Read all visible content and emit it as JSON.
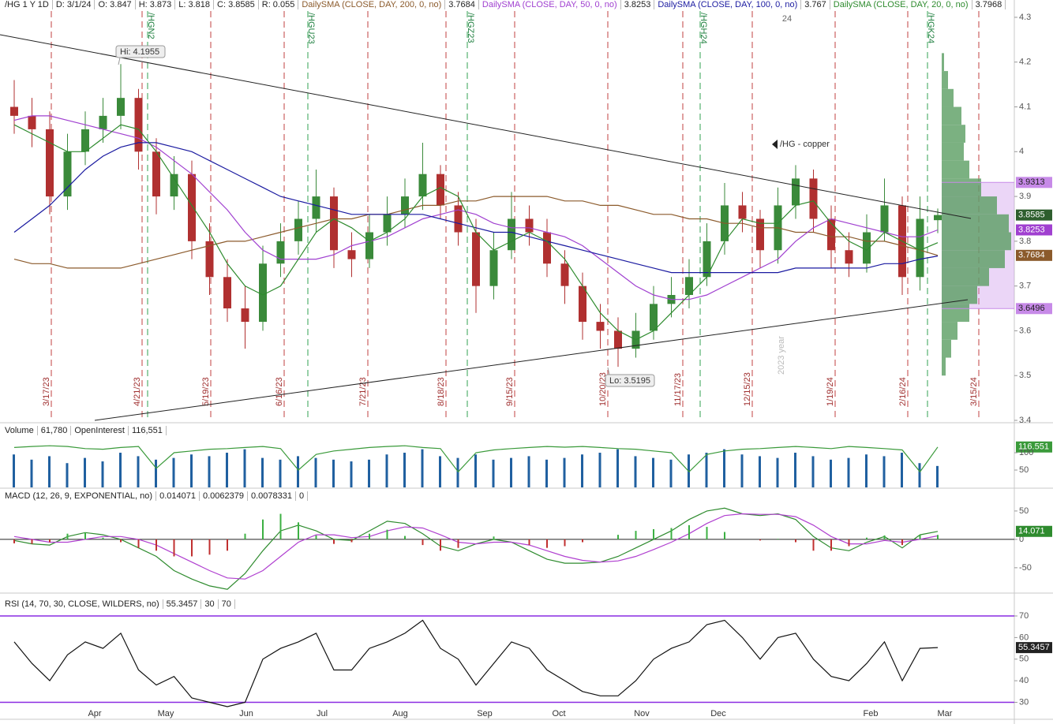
{
  "header": {
    "symbol": "/HG 1 Y 1D",
    "date": "D: 3/1/24",
    "open": "O: 3.847",
    "high": "H: 3.873",
    "low": "L: 3.818",
    "close": "C: 3.8585",
    "range": "R: 0.055"
  },
  "x_axis": {
    "labels": [
      "Apr",
      "May",
      "Jun",
      "Jul",
      "Aug",
      "Sep",
      "Oct",
      "Nov",
      "Dec",
      "Feb",
      "Mar"
    ],
    "year_mark": "24"
  },
  "expirations": [
    "3/17/23",
    "4/21/23",
    "5/19/23",
    "6/16/23",
    "7/21/23",
    "8/18/23",
    "9/15/23",
    "10/20/23",
    "11/17/23",
    "12/15/23",
    "1/19/24",
    "2/16/24",
    "3/15/24"
  ],
  "contracts": [
    "/HGN2",
    "/HGU23",
    "/HGZ23",
    "/HGH24",
    "/HGK24"
  ],
  "annotations": {
    "high": "Hi: 4.1955",
    "low": "Lo: 3.5195",
    "symbol_note": "/HG - copper",
    "year_note": "2023 year"
  },
  "chart_data": [
    {
      "type": "candlestick",
      "up_color": "#3a8a3a",
      "down_color": "#b03030",
      "open": [
        4.1,
        4.08,
        4.05,
        3.9,
        4.0,
        4.05,
        4.08,
        4.12,
        4.0,
        3.9,
        3.95,
        3.8,
        3.72,
        3.65,
        3.62,
        3.75,
        3.8,
        3.85,
        3.9,
        3.78,
        3.76,
        3.82,
        3.86,
        3.9,
        3.95,
        3.88,
        3.82,
        3.7,
        3.78,
        3.85,
        3.82,
        3.75,
        3.7,
        3.62,
        3.6,
        3.56,
        3.6,
        3.66,
        3.68,
        3.72,
        3.8,
        3.88,
        3.85,
        3.78,
        3.88,
        3.94,
        3.85,
        3.78,
        3.75,
        3.82,
        3.88,
        3.72,
        3.847
      ],
      "high": [
        4.16,
        4.12,
        4.09,
        4.04,
        4.09,
        4.12,
        4.1955,
        4.14,
        4.03,
        3.99,
        3.98,
        3.84,
        3.76,
        3.7,
        3.79,
        3.84,
        3.89,
        3.96,
        3.92,
        3.82,
        3.86,
        3.9,
        3.94,
        4.02,
        3.97,
        3.91,
        3.85,
        3.82,
        3.91,
        3.88,
        3.85,
        3.78,
        3.73,
        3.66,
        3.63,
        3.64,
        3.7,
        3.72,
        3.76,
        3.84,
        3.93,
        3.91,
        3.87,
        3.92,
        3.97,
        3.96,
        3.88,
        3.82,
        3.86,
        3.94,
        3.9,
        3.9,
        3.873
      ],
      "low": [
        4.04,
        4.01,
        3.86,
        3.87,
        3.97,
        4.02,
        4.05,
        3.96,
        3.86,
        3.87,
        3.76,
        3.68,
        3.62,
        3.56,
        3.6,
        3.72,
        3.77,
        3.82,
        3.74,
        3.72,
        3.74,
        3.79,
        3.83,
        3.87,
        3.85,
        3.79,
        3.64,
        3.67,
        3.76,
        3.79,
        3.72,
        3.66,
        3.58,
        3.56,
        3.5195,
        3.54,
        3.58,
        3.63,
        3.65,
        3.7,
        3.77,
        3.82,
        3.74,
        3.75,
        3.85,
        3.82,
        3.74,
        3.72,
        3.73,
        3.8,
        3.68,
        3.69,
        3.818
      ],
      "close": [
        4.08,
        4.05,
        3.9,
        4.0,
        4.05,
        4.08,
        4.12,
        4.0,
        3.9,
        3.95,
        3.8,
        3.72,
        3.65,
        3.62,
        3.75,
        3.8,
        3.85,
        3.9,
        3.78,
        3.76,
        3.82,
        3.86,
        3.9,
        3.95,
        3.88,
        3.82,
        3.7,
        3.78,
        3.85,
        3.82,
        3.75,
        3.7,
        3.62,
        3.6,
        3.56,
        3.6,
        3.66,
        3.68,
        3.72,
        3.8,
        3.88,
        3.85,
        3.78,
        3.88,
        3.94,
        3.85,
        3.78,
        3.75,
        3.82,
        3.88,
        3.72,
        3.85,
        3.8585
      ],
      "series": [
        {
          "name": "DailySMA (CLOSE, DAY, 200, 0, no)",
          "color": "#8b5a2b",
          "values": [
            3.76,
            3.75,
            3.75,
            3.74,
            3.74,
            3.74,
            3.74,
            3.75,
            3.76,
            3.77,
            3.78,
            3.79,
            3.8,
            3.8,
            3.81,
            3.82,
            3.83,
            3.84,
            3.85,
            3.85,
            3.86,
            3.86,
            3.87,
            3.88,
            3.88,
            3.89,
            3.89,
            3.9,
            3.9,
            3.9,
            3.9,
            3.89,
            3.89,
            3.88,
            3.88,
            3.87,
            3.86,
            3.86,
            3.85,
            3.85,
            3.84,
            3.84,
            3.83,
            3.83,
            3.82,
            3.82,
            3.81,
            3.81,
            3.8,
            3.8,
            3.79,
            3.78,
            3.7684
          ]
        },
        {
          "name": "DailySMA (CLOSE, DAY, 50, 0, no)",
          "color": "#a040d0",
          "values": [
            4.07,
            4.08,
            4.08,
            4.07,
            4.06,
            4.05,
            4.04,
            4.03,
            4.01,
            3.98,
            3.95,
            3.91,
            3.87,
            3.82,
            3.78,
            3.76,
            3.76,
            3.76,
            3.77,
            3.79,
            3.8,
            3.81,
            3.83,
            3.85,
            3.86,
            3.87,
            3.86,
            3.84,
            3.83,
            3.83,
            3.82,
            3.81,
            3.79,
            3.76,
            3.73,
            3.7,
            3.68,
            3.67,
            3.67,
            3.68,
            3.7,
            3.72,
            3.74,
            3.76,
            3.8,
            3.83,
            3.85,
            3.84,
            3.83,
            3.82,
            3.81,
            3.81,
            3.8253
          ]
        },
        {
          "name": "DailySMA (CLOSE, DAY, 100, 0, no)",
          "color": "#1a1aa0",
          "values": [
            3.82,
            3.85,
            3.88,
            3.92,
            3.96,
            3.99,
            4.01,
            4.02,
            4.02,
            4.01,
            4.0,
            3.98,
            3.96,
            3.94,
            3.92,
            3.9,
            3.89,
            3.88,
            3.87,
            3.86,
            3.86,
            3.86,
            3.86,
            3.86,
            3.85,
            3.84,
            3.83,
            3.82,
            3.82,
            3.81,
            3.8,
            3.79,
            3.78,
            3.77,
            3.76,
            3.75,
            3.74,
            3.73,
            3.73,
            3.73,
            3.73,
            3.73,
            3.73,
            3.73,
            3.74,
            3.74,
            3.74,
            3.74,
            3.74,
            3.75,
            3.75,
            3.76,
            3.767
          ]
        },
        {
          "name": "DailySMA (CLOSE, DAY, 20, 0, no)",
          "color": "#2e8b2e",
          "values": [
            4.06,
            4.04,
            4.02,
            4.0,
            4.0,
            4.03,
            4.06,
            4.05,
            4.0,
            3.94,
            3.88,
            3.82,
            3.75,
            3.7,
            3.68,
            3.7,
            3.76,
            3.82,
            3.85,
            3.83,
            3.8,
            3.82,
            3.85,
            3.9,
            3.92,
            3.9,
            3.82,
            3.78,
            3.8,
            3.82,
            3.8,
            3.76,
            3.7,
            3.64,
            3.6,
            3.58,
            3.6,
            3.64,
            3.68,
            3.72,
            3.8,
            3.85,
            3.84,
            3.84,
            3.88,
            3.89,
            3.84,
            3.8,
            3.78,
            3.82,
            3.8,
            3.78,
            3.7968
          ]
        }
      ],
      "volume_profile": {
        "color": "#5a9e62",
        "prices": [
          3.52,
          3.56,
          3.6,
          3.64,
          3.68,
          3.72,
          3.76,
          3.8,
          3.84,
          3.88,
          3.92,
          3.96,
          4,
          4.04,
          4.08,
          4.12,
          4.16,
          4.2
        ],
        "values": [
          5,
          12,
          20,
          35,
          45,
          60,
          80,
          88,
          85,
          70,
          50,
          35,
          28,
          30,
          25,
          15,
          8,
          3
        ],
        "value_area_high": 3.9313,
        "value_area_low": 3.6496,
        "value_area_color": "#c78ae8"
      },
      "ylim": [
        3.4,
        4.314
      ],
      "yticks": [
        3.4,
        3.5,
        3.6,
        3.7,
        3.8,
        3.9,
        4,
        4.1,
        4.2,
        4.3
      ]
    },
    {
      "type": "bar",
      "series": [
        {
          "name": "Volume",
          "color": "#2060a0",
          "value_label": "61,780",
          "values": [
            95,
            80,
            90,
            70,
            85,
            75,
            100,
            90,
            80,
            85,
            95,
            90,
            100,
            110,
            85,
            80,
            90,
            85,
            80,
            75,
            80,
            95,
            100,
            110,
            90,
            85,
            95,
            80,
            85,
            90,
            80,
            85,
            95,
            100,
            110,
            90,
            85,
            80,
            95,
            100,
            110,
            95,
            90,
            85,
            100,
            90,
            80,
            85,
            95,
            90,
            100,
            70,
            61.78
          ]
        },
        {
          "name": "OpenInterest",
          "color": "#3a9a3a",
          "kind": "line",
          "value_label": "116,551",
          "values": [
            115,
            118,
            120,
            118,
            112,
            110,
            115,
            118,
            55,
            100,
            105,
            110,
            112,
            115,
            118,
            112,
            50,
            95,
            105,
            110,
            115,
            118,
            120,
            115,
            112,
            45,
            100,
            108,
            112,
            115,
            118,
            116,
            118,
            115,
            112,
            110,
            105,
            100,
            45,
            95,
            105,
            110,
            112,
            115,
            118,
            115,
            112,
            118,
            115,
            112,
            108,
            45,
            116.551
          ]
        }
      ],
      "ylim": [
        0,
        141
      ],
      "yticks": [
        50,
        100
      ]
    },
    {
      "type": "macd",
      "title": "MACD (12, 26, 9, EXPONENTIAL, no)",
      "zero_line": 0,
      "up_color": "#3cb043",
      "down_color": "#c03030",
      "series": [
        {
          "color": "#2e8b2e",
          "value_label": "0.014071",
          "values": [
            -2,
            -8,
            -10,
            5,
            12,
            8,
            0,
            -15,
            -30,
            -55,
            -70,
            -82,
            -88,
            -60,
            -20,
            15,
            25,
            15,
            0,
            -2,
            15,
            32,
            28,
            10,
            -12,
            -20,
            -8,
            0,
            -5,
            -20,
            -35,
            -42,
            -42,
            -40,
            -30,
            -15,
            0,
            15,
            35,
            50,
            55,
            45,
            42,
            45,
            35,
            5,
            -15,
            -20,
            -5,
            5,
            -15,
            8,
            14.071
          ]
        },
        {
          "color": "#b040d0",
          "value_label": "0.0062379",
          "values": [
            5,
            0,
            -5,
            -5,
            0,
            5,
            5,
            0,
            -10,
            -25,
            -40,
            -55,
            -68,
            -70,
            -55,
            -30,
            -5,
            8,
            8,
            3,
            5,
            15,
            22,
            20,
            8,
            -5,
            -8,
            -5,
            -5,
            -10,
            -20,
            -30,
            -37,
            -40,
            -38,
            -30,
            -18,
            -5,
            10,
            28,
            42,
            45,
            44,
            44,
            40,
            25,
            5,
            -8,
            -8,
            -2,
            -5,
            0,
            6.2379
          ]
        },
        {
          "kind": "histogram",
          "value_label": "0.0078331",
          "values": [
            -7,
            -8,
            -5,
            10,
            12,
            3,
            -5,
            -15,
            -20,
            -30,
            -30,
            -27,
            -20,
            10,
            35,
            45,
            30,
            7,
            -8,
            -5,
            10,
            17,
            6,
            -10,
            -20,
            -15,
            0,
            5,
            0,
            -10,
            -15,
            -12,
            -5,
            0,
            8,
            15,
            18,
            20,
            25,
            22,
            13,
            0,
            -2,
            1,
            -5,
            -20,
            -20,
            -12,
            3,
            7,
            -10,
            8,
            7.8331
          ]
        }
      ],
      "ylim": [
        -78,
        61
      ],
      "yticks": [
        -50,
        0,
        50
      ]
    },
    {
      "type": "line",
      "title": "RSI (14, 70, 30, CLOSE, WILDERS, no)",
      "color": "#111111",
      "band_color": "#8a2be2",
      "overbought": 70,
      "oversold": 30,
      "values": [
        58,
        48,
        40,
        52,
        58,
        55,
        62,
        45,
        38,
        42,
        32,
        30,
        28,
        30,
        50,
        55,
        58,
        62,
        45,
        45,
        55,
        58,
        62,
        68,
        55,
        50,
        38,
        48,
        58,
        55,
        45,
        40,
        35,
        33,
        33,
        40,
        50,
        55,
        58,
        66,
        68,
        60,
        50,
        60,
        62,
        50,
        42,
        40,
        48,
        58,
        40,
        55,
        55.3457
      ],
      "ylim": [
        28,
        78.4
      ],
      "yticks": [
        30,
        40,
        50,
        60,
        70
      ]
    }
  ]
}
